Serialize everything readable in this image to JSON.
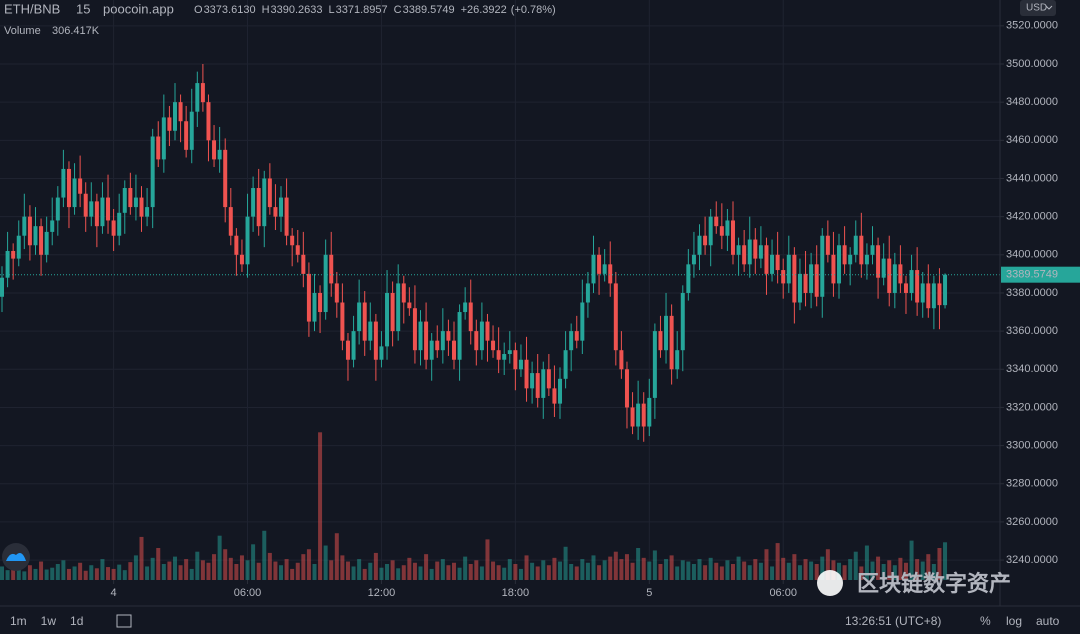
{
  "chart_data": {
    "type": "candlestick",
    "legend": {
      "symbol": "ETH/BNB",
      "interval": "15",
      "source": "poocoin.app",
      "items": [
        {
          "key": "O",
          "value": "3373.6130"
        },
        {
          "key": "H",
          "value": "3390.2633"
        },
        {
          "key": "L",
          "value": "3371.8957"
        },
        {
          "key": "C",
          "value": "3389.5749"
        }
      ],
      "change": "+26.3922",
      "change_pct": "(+0.78%)",
      "volume_name": "Volume",
      "volume_label": "306.417K"
    },
    "currency": "USD",
    "last_price_label": "3389.5749",
    "up_color": "#26a69a",
    "down_color": "#ef5350",
    "open": [
      3378,
      3388,
      3402,
      3398,
      3410,
      3420,
      3405,
      3415,
      3400,
      3412,
      3418,
      3430,
      3445,
      3425,
      3440,
      3432,
      3420,
      3428,
      3415,
      3430,
      3418,
      3410,
      3422,
      3435,
      3425,
      3430,
      3420,
      3425,
      3462,
      3450,
      3472,
      3465,
      3480,
      3470,
      3455,
      3475,
      3490,
      3480,
      3460,
      3450,
      3455,
      3425,
      3410,
      3400,
      3395,
      3420,
      3435,
      3415,
      3440,
      3425,
      3420,
      3430,
      3410,
      3405,
      3400,
      3390,
      3365,
      3380,
      3370,
      3400,
      3385,
      3375,
      3355,
      3345,
      3360,
      3375,
      3355,
      3365,
      3345,
      3352,
      3380,
      3360,
      3385,
      3375,
      3372,
      3350,
      3365,
      3345,
      3355,
      3350,
      3360,
      3355,
      3345,
      3370,
      3375,
      3360,
      3350,
      3365,
      3355,
      3350,
      3345,
      3348,
      3350,
      3340,
      3345,
      3330,
      3338,
      3325,
      3340,
      3330,
      3322,
      3335,
      3350,
      3360,
      3355,
      3375,
      3385,
      3400,
      3390,
      3395,
      3385,
      3350,
      3340,
      3320,
      3310,
      3322,
      3310,
      3325,
      3360,
      3350,
      3368,
      3340,
      3350,
      3380,
      3395,
      3400,
      3410,
      3405,
      3420,
      3415,
      3410,
      3418,
      3400,
      3405,
      3395,
      3408,
      3398,
      3405,
      3390,
      3400,
      3392,
      3385,
      3400,
      3375,
      3390,
      3380,
      3395,
      3378,
      3410,
      3400,
      3385,
      3405,
      3395,
      3400,
      3410,
      3395,
      3400,
      3405,
      3388,
      3398,
      3380,
      3395,
      3385,
      3380,
      3392,
      3375,
      3385,
      3372,
      3385,
      3373.613
    ],
    "high": [
      3394,
      3412,
      3406,
      3418,
      3432,
      3426,
      3425,
      3419,
      3420,
      3430,
      3436,
      3455,
      3449,
      3448,
      3452,
      3438,
      3438,
      3432,
      3438,
      3442,
      3424,
      3432,
      3439,
      3443,
      3442,
      3436,
      3435,
      3466,
      3470,
      3484,
      3478,
      3490,
      3484,
      3478,
      3487,
      3496,
      3500,
      3484,
      3468,
      3467,
      3461,
      3435,
      3414,
      3408,
      3432,
      3441,
      3445,
      3444,
      3448,
      3437,
      3436,
      3440,
      3414,
      3413,
      3412,
      3396,
      3390,
      3384,
      3408,
      3412,
      3391,
      3385,
      3359,
      3368,
      3387,
      3381,
      3375,
      3369,
      3360,
      3392,
      3386,
      3395,
      3389,
      3383,
      3384,
      3371,
      3375,
      3359,
      3363,
      3372,
      3366,
      3365,
      3374,
      3383,
      3387,
      3366,
      3375,
      3369,
      3363,
      3362,
      3354,
      3360,
      3354,
      3353,
      3357,
      3344,
      3348,
      3344,
      3348,
      3342,
      3341,
      3360,
      3364,
      3368,
      3387,
      3391,
      3410,
      3404,
      3403,
      3407,
      3391,
      3360,
      3344,
      3328,
      3334,
      3328,
      3335,
      3364,
      3368,
      3380,
      3374,
      3360,
      3384,
      3403,
      3412,
      3416,
      3420,
      3424,
      3428,
      3427,
      3424,
      3428,
      3409,
      3413,
      3420,
      3414,
      3415,
      3409,
      3408,
      3412,
      3398,
      3410,
      3404,
      3398,
      3402,
      3401,
      3405,
      3414,
      3418,
      3412,
      3411,
      3415,
      3404,
      3418,
      3422,
      3406,
      3415,
      3409,
      3406,
      3410,
      3401,
      3405,
      3389,
      3400,
      3404,
      3391,
      3395,
      3389,
      3393,
      3390.2633
    ],
    "low": [
      3370,
      3383,
      3387,
      3394,
      3403,
      3397,
      3400,
      3389,
      3396,
      3405,
      3410,
      3425,
      3414,
      3421,
      3425,
      3412,
      3415,
      3404,
      3411,
      3411,
      3402,
      3405,
      3411,
      3421,
      3418,
      3412,
      3415,
      3414,
      3446,
      3443,
      3457,
      3460,
      3459,
      3451,
      3448,
      3467,
      3475,
      3449,
      3446,
      3443,
      3417,
      3405,
      3389,
      3391,
      3388,
      3412,
      3410,
      3404,
      3421,
      3413,
      3412,
      3405,
      3394,
      3396,
      3383,
      3357,
      3360,
      3359,
      3366,
      3378,
      3367,
      3350,
      3334,
      3341,
      3353,
      3347,
      3350,
      3334,
      3341,
      3345,
      3352,
      3355,
      3364,
      3368,
      3343,
      3342,
      3340,
      3334,
      3346,
      3343,
      3347,
      3340,
      3334,
      3366,
      3353,
      3342,
      3345,
      3344,
      3346,
      3338,
      3337,
      3343,
      3329,
      3336,
      3323,
      3322,
      3320,
      3314,
      3326,
      3315,
      3314,
      3330,
      3339,
      3351,
      3348,
      3367,
      3380,
      3379,
      3386,
      3378,
      3342,
      3335,
      3309,
      3306,
      3303,
      3302,
      3305,
      3314,
      3346,
      3343,
      3332,
      3335,
      3339,
      3376,
      3388,
      3392,
      3400,
      3394,
      3411,
      3403,
      3402,
      3395,
      3389,
      3391,
      3388,
      3390,
      3393,
      3379,
      3386,
      3385,
      3377,
      3380,
      3364,
      3371,
      3373,
      3372,
      3373,
      3367,
      3396,
      3378,
      3377,
      3390,
      3384,
      3396,
      3388,
      3387,
      3395,
      3377,
      3384,
      3373,
      3372,
      3380,
      3369,
      3376,
      3368,
      3367,
      3367,
      3361,
      3361,
      3371.8957
    ],
    "close": [
      3388,
      3402,
      3398,
      3410,
      3420,
      3405,
      3415,
      3400,
      3412,
      3418,
      3430,
      3445,
      3425,
      3440,
      3432,
      3420,
      3428,
      3415,
      3430,
      3418,
      3410,
      3422,
      3435,
      3425,
      3430,
      3420,
      3425,
      3462,
      3450,
      3472,
      3465,
      3480,
      3470,
      3455,
      3475,
      3490,
      3480,
      3460,
      3450,
      3455,
      3425,
      3410,
      3400,
      3395,
      3420,
      3435,
      3415,
      3440,
      3425,
      3420,
      3430,
      3410,
      3405,
      3400,
      3390,
      3365,
      3380,
      3370,
      3400,
      3385,
      3375,
      3355,
      3345,
      3360,
      3375,
      3355,
      3365,
      3345,
      3352,
      3380,
      3360,
      3385,
      3375,
      3372,
      3350,
      3365,
      3345,
      3355,
      3350,
      3360,
      3355,
      3345,
      3370,
      3375,
      3360,
      3350,
      3365,
      3355,
      3350,
      3345,
      3348,
      3350,
      3340,
      3345,
      3330,
      3338,
      3325,
      3340,
      3330,
      3322,
      3335,
      3350,
      3360,
      3355,
      3375,
      3385,
      3400,
      3390,
      3395,
      3385,
      3350,
      3340,
      3320,
      3310,
      3322,
      3310,
      3325,
      3360,
      3350,
      3368,
      3340,
      3350,
      3380,
      3395,
      3400,
      3410,
      3405,
      3420,
      3415,
      3410,
      3418,
      3400,
      3405,
      3395,
      3408,
      3398,
      3405,
      3390,
      3400,
      3392,
      3385,
      3400,
      3375,
      3390,
      3380,
      3395,
      3378,
      3410,
      3400,
      3385,
      3405,
      3395,
      3400,
      3410,
      3395,
      3400,
      3405,
      3388,
      3398,
      3380,
      3395,
      3385,
      3380,
      3392,
      3375,
      3385,
      3372,
      3385,
      3373.613,
      3389.5749
    ],
    "volume": [
      110,
      80,
      95,
      140,
      70,
      120,
      90,
      150,
      85,
      100,
      130,
      160,
      90,
      110,
      140,
      75,
      120,
      95,
      170,
      105,
      90,
      125,
      80,
      145,
      200,
      350,
      110,
      180,
      260,
      130,
      150,
      190,
      120,
      170,
      90,
      230,
      160,
      140,
      210,
      360,
      250,
      180,
      130,
      200,
      160,
      290,
      140,
      400,
      220,
      150,
      120,
      170,
      90,
      140,
      210,
      250,
      130,
      1200,
      280,
      160,
      380,
      200,
      150,
      110,
      170,
      90,
      140,
      220,
      100,
      130,
      160,
      95,
      120,
      180,
      140,
      110,
      210,
      90,
      150,
      170,
      120,
      140,
      100,
      190,
      130,
      160,
      110,
      330,
      150,
      120,
      100,
      170,
      130,
      90,
      200,
      140,
      110,
      160,
      120,
      180,
      150,
      270,
      130,
      110,
      170,
      140,
      200,
      120,
      160,
      190,
      230,
      170,
      210,
      140,
      260,
      180,
      150,
      240,
      130,
      170,
      200,
      110,
      160,
      150,
      130,
      170,
      120,
      180,
      140,
      110,
      160,
      130,
      190,
      150,
      120,
      170,
      140,
      250,
      110,
      300,
      180,
      140,
      210,
      120,
      170,
      150,
      130,
      190,
      250,
      160,
      140,
      120,
      170,
      230,
      110,
      280,
      150,
      190,
      130,
      160,
      120,
      180,
      140,
      320,
      170,
      150,
      210,
      130,
      260,
      306.417
    ],
    "vlim": [
      0,
      1300
    ],
    "ylim": [
      3229.56,
      3533.54
    ],
    "yticks": [
      {
        "value": 3240,
        "label": "3240.0000"
      },
      {
        "value": 3260,
        "label": "3260.0000"
      },
      {
        "value": 3280,
        "label": "3280.0000"
      },
      {
        "value": 3300,
        "label": "3300.0000"
      },
      {
        "value": 3320,
        "label": "3320.0000"
      },
      {
        "value": 3340,
        "label": "3340.0000"
      },
      {
        "value": 3360,
        "label": "3360.0000"
      },
      {
        "value": 3380,
        "label": "3380.0000"
      },
      {
        "value": 3400,
        "label": "3400.0000"
      },
      {
        "value": 3420,
        "label": "3420.0000"
      },
      {
        "value": 3440,
        "label": "3440.0000"
      },
      {
        "value": 3460,
        "label": "3460.0000"
      },
      {
        "value": 3480,
        "label": "3480.0000"
      },
      {
        "value": 3500,
        "label": "3500.0000"
      },
      {
        "value": 3520,
        "label": "3520.0000"
      }
    ],
    "xlim": [
      -0.36,
      178.85
    ],
    "xticks": [
      {
        "value": 20,
        "label": "4"
      },
      {
        "value": 44,
        "label": "06:00"
      },
      {
        "value": 68,
        "label": "12:00"
      },
      {
        "value": 92,
        "label": "18:00"
      },
      {
        "value": 116,
        "label": "5"
      },
      {
        "value": 140,
        "label": "06:00"
      }
    ],
    "grid": true
  },
  "toolbar": {
    "ranges": [
      "1m",
      "1w",
      "1d"
    ],
    "clock": "13:26:51 (UTC+8)",
    "percent": "%",
    "log": "log",
    "auto": "auto"
  },
  "watermark": "区块链数字资产"
}
